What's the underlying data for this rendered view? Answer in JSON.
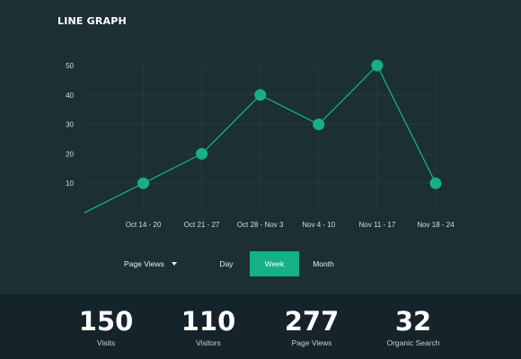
{
  "header": {
    "title": "LINE GRAPH"
  },
  "chart_data": {
    "type": "line",
    "title": "",
    "xlabel": "",
    "ylabel": "",
    "ylim": [
      0,
      50
    ],
    "yticks": [
      10,
      20,
      30,
      40,
      50
    ],
    "grid": true,
    "categories": [
      "",
      "Oct 14 - 20",
      "Oct 21 - 27",
      "Oct 28 - Nov 3",
      "Nov 4 - 10",
      "Nov 11 - 17",
      "Nov 18 - 24"
    ],
    "series": [
      {
        "values": [
          0,
          10,
          20,
          40,
          30,
          50,
          10
        ],
        "markers": [
          false,
          true,
          true,
          true,
          true,
          true,
          true
        ]
      }
    ],
    "colors": {
      "line": "#15b087",
      "grid": "#223a40",
      "ticks": "#d6dfdf"
    }
  },
  "controls": {
    "metric_select": "Page Views",
    "tabs": [
      {
        "label": "Day",
        "active": false
      },
      {
        "label": "Week",
        "active": true
      },
      {
        "label": "Month",
        "active": false
      }
    ]
  },
  "stats": [
    {
      "value": "150",
      "label": "Visits"
    },
    {
      "value": "110",
      "label": "Visitors"
    },
    {
      "value": "277",
      "label": "Page Views"
    },
    {
      "value": "32",
      "label": "Organic Search"
    }
  ],
  "colors": {
    "background": "#1b2f35",
    "stats_bar": "#15242a",
    "accent": "#15b087"
  }
}
